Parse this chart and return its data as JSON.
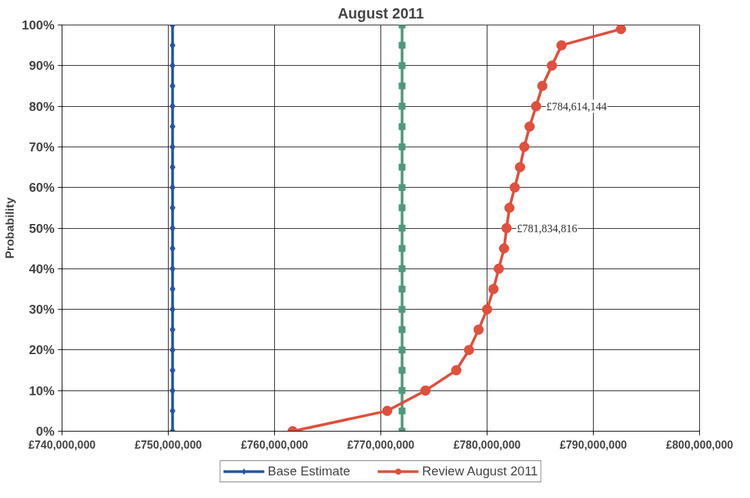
{
  "chart_data": {
    "type": "line",
    "title": "August 2011",
    "ylabel": "Probability",
    "xlim": [
      740000000,
      800000000
    ],
    "xticks": [
      {
        "value": 740000000,
        "label": "£740,000,000"
      },
      {
        "value": 750000000,
        "label": "£750,000,000"
      },
      {
        "value": 760000000,
        "label": "£760,000,000"
      },
      {
        "value": 770000000,
        "label": "£770,000,000"
      },
      {
        "value": 780000000,
        "label": "£780,000,000"
      },
      {
        "value": 790000000,
        "label": "£790,000,000"
      },
      {
        "value": 800000000,
        "label": "£800,000,000"
      }
    ],
    "ylim": [
      0,
      100
    ],
    "yticks": [
      {
        "value": 0,
        "label": "0%"
      },
      {
        "value": 10,
        "label": "10%"
      },
      {
        "value": 20,
        "label": "20%"
      },
      {
        "value": 30,
        "label": "30%"
      },
      {
        "value": 40,
        "label": "40%"
      },
      {
        "value": 50,
        "label": "50%"
      },
      {
        "value": 60,
        "label": "60%"
      },
      {
        "value": 70,
        "label": "70%"
      },
      {
        "value": 80,
        "label": "80%"
      },
      {
        "value": 90,
        "label": "90%"
      },
      {
        "value": 100,
        "label": "100%"
      }
    ],
    "grid": true,
    "legend": "bottom",
    "series": [
      {
        "name": "Base Estimate",
        "color": "#2456a4",
        "marker": "diamond",
        "x": [
          750400000,
          750400000,
          750400000,
          750400000,
          750400000,
          750400000,
          750400000,
          750400000,
          750400000,
          750400000,
          750400000,
          750400000,
          750400000,
          750400000,
          750400000,
          750400000,
          750400000,
          750400000,
          750400000,
          750400000,
          750400000
        ],
        "values": [
          0,
          5,
          10,
          15,
          20,
          25,
          30,
          35,
          40,
          45,
          50,
          55,
          60,
          65,
          70,
          75,
          80,
          85,
          90,
          95,
          100
        ]
      },
      {
        "color": "#4f9a7a",
        "marker": "square",
        "x": [
          772000000,
          772000000,
          772000000,
          772000000,
          772000000,
          772000000,
          772000000,
          772000000,
          772000000,
          772000000,
          772000000,
          772000000,
          772000000,
          772000000,
          772000000,
          772000000,
          772000000,
          772000000,
          772000000,
          772000000,
          772000000
        ],
        "values": [
          0,
          5,
          10,
          15,
          20,
          25,
          30,
          35,
          40,
          45,
          50,
          55,
          60,
          65,
          70,
          75,
          80,
          85,
          90,
          95,
          100
        ]
      },
      {
        "name": "Review August 2011",
        "color": "#e0503c",
        "marker": "circle",
        "x": [
          761700000,
          770600000,
          774200000,
          777100000,
          778300000,
          779200000,
          780000000,
          780600000,
          781100000,
          781600000,
          781834816,
          782100000,
          782600000,
          783100000,
          783500000,
          784000000,
          784614144,
          785200000,
          786100000,
          787000000,
          792600000
        ],
        "values": [
          0,
          5,
          10,
          15,
          20,
          25,
          30,
          35,
          40,
          45,
          50,
          55,
          60,
          65,
          70,
          75,
          80,
          85,
          90,
          95,
          99
        ]
      }
    ],
    "annotations": [
      {
        "text": "£781,834,816",
        "x": 781834816,
        "y": 50
      },
      {
        "text": "£784,614,144",
        "x": 784614144,
        "y": 80
      }
    ]
  }
}
